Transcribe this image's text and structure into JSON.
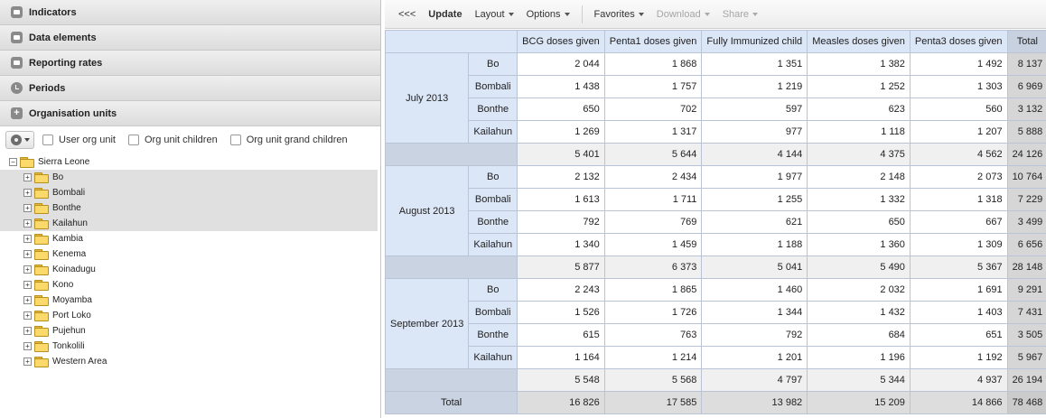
{
  "left_panel": {
    "sections": [
      {
        "label": "Indicators",
        "icon": "chart-icon"
      },
      {
        "label": "Data elements",
        "icon": "chart-icon"
      },
      {
        "label": "Reporting rates",
        "icon": "chart-icon"
      },
      {
        "label": "Periods",
        "icon": "clock-icon"
      },
      {
        "label": "Organisation units",
        "icon": "plus-icon"
      }
    ],
    "org_options": {
      "user_org_unit": "User org unit",
      "org_unit_children": "Org unit children",
      "org_unit_grand_children": "Org unit grand children"
    },
    "tree": {
      "root": "Sierra Leone",
      "children": [
        "Bo",
        "Bombali",
        "Bonthe",
        "Kailahun",
        "Kambia",
        "Kenema",
        "Koinadugu",
        "Kono",
        "Moyamba",
        "Port Loko",
        "Pujehun",
        "Tonkolili",
        "Western Area"
      ],
      "selected": [
        "Bo",
        "Bombali",
        "Bonthe",
        "Kailahun"
      ]
    }
  },
  "toolbar": {
    "collapse": "<<<",
    "update": "Update",
    "layout": "Layout",
    "options": "Options",
    "favorites": "Favorites",
    "download": "Download",
    "share": "Share"
  },
  "table": {
    "columns": [
      "BCG doses given",
      "Penta1 doses given",
      "Fully Immunized child",
      "Measles doses given",
      "Penta3 doses given",
      "Total"
    ],
    "periods": [
      {
        "label": "July 2013",
        "rows": [
          {
            "ou": "Bo",
            "values": [
              "2 044",
              "1 868",
              "1 351",
              "1 382",
              "1 492",
              "8 137"
            ]
          },
          {
            "ou": "Bombali",
            "values": [
              "1 438",
              "1 757",
              "1 219",
              "1 252",
              "1 303",
              "6 969"
            ]
          },
          {
            "ou": "Bonthe",
            "values": [
              "650",
              "702",
              "597",
              "623",
              "560",
              "3 132"
            ]
          },
          {
            "ou": "Kailahun",
            "values": [
              "1 269",
              "1 317",
              "977",
              "1 118",
              "1 207",
              "5 888"
            ]
          }
        ],
        "subtotal": [
          "5 401",
          "5 644",
          "4 144",
          "4 375",
          "4 562",
          "24 126"
        ]
      },
      {
        "label": "August 2013",
        "rows": [
          {
            "ou": "Bo",
            "values": [
              "2 132",
              "2 434",
              "1 977",
              "2 148",
              "2 073",
              "10 764"
            ]
          },
          {
            "ou": "Bombali",
            "values": [
              "1 613",
              "1 711",
              "1 255",
              "1 332",
              "1 318",
              "7 229"
            ]
          },
          {
            "ou": "Bonthe",
            "values": [
              "792",
              "769",
              "621",
              "650",
              "667",
              "3 499"
            ]
          },
          {
            "ou": "Kailahun",
            "values": [
              "1 340",
              "1 459",
              "1 188",
              "1 360",
              "1 309",
              "6 656"
            ]
          }
        ],
        "subtotal": [
          "5 877",
          "6 373",
          "5 041",
          "5 490",
          "5 367",
          "28 148"
        ]
      },
      {
        "label": "September 2013",
        "rows": [
          {
            "ou": "Bo",
            "values": [
              "2 243",
              "1 865",
              "1 460",
              "2 032",
              "1 691",
              "9 291"
            ]
          },
          {
            "ou": "Bombali",
            "values": [
              "1 526",
              "1 726",
              "1 344",
              "1 432",
              "1 403",
              "7 431"
            ]
          },
          {
            "ou": "Bonthe",
            "values": [
              "615",
              "763",
              "792",
              "684",
              "651",
              "3 505"
            ]
          },
          {
            "ou": "Kailahun",
            "values": [
              "1 164",
              "1 214",
              "1 201",
              "1 196",
              "1 192",
              "5 967"
            ]
          }
        ],
        "subtotal": [
          "5 548",
          "5 568",
          "4 797",
          "5 344",
          "4 937",
          "26 194"
        ]
      }
    ],
    "grand_total_label": "Total",
    "grand_total": [
      "16 826",
      "17 585",
      "13 982",
      "15 209",
      "14 866",
      "78 468"
    ]
  }
}
